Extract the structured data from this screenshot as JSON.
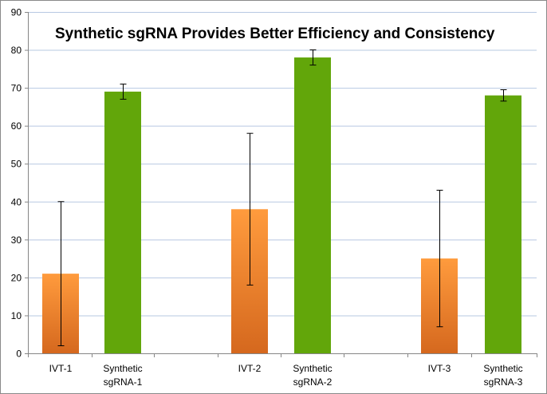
{
  "chart_data": {
    "type": "bar",
    "title": "Synthetic sgRNA Provides Better Efficiency and Consistency",
    "xlabel": "",
    "ylabel": "",
    "ylim": [
      0,
      90
    ],
    "ytick_step": 10,
    "grid": true,
    "legend": "none",
    "categories": [
      {
        "lines": [
          "IVT-1"
        ],
        "value": 21,
        "error": 19,
        "group": "IVT"
      },
      {
        "lines": [
          "Synthetic",
          "sgRNA-1"
        ],
        "value": 69,
        "error": 2,
        "group": "Synthetic"
      },
      {
        "lines": [
          "IVT-2"
        ],
        "value": 38,
        "error": 20,
        "group": "IVT"
      },
      {
        "lines": [
          "Synthetic",
          "sgRNA-2"
        ],
        "value": 78,
        "error": 2,
        "group": "Synthetic"
      },
      {
        "lines": [
          "IVT-3"
        ],
        "value": 25,
        "error": 18,
        "group": "IVT"
      },
      {
        "lines": [
          "Synthetic",
          "sgRNA-3"
        ],
        "value": 68,
        "error": 1.5,
        "group": "Synthetic"
      }
    ],
    "colors": {
      "IVT_top": "#ff9b3d",
      "IVT_bottom": "#d5681e",
      "Synthetic": "#62a60a"
    }
  }
}
